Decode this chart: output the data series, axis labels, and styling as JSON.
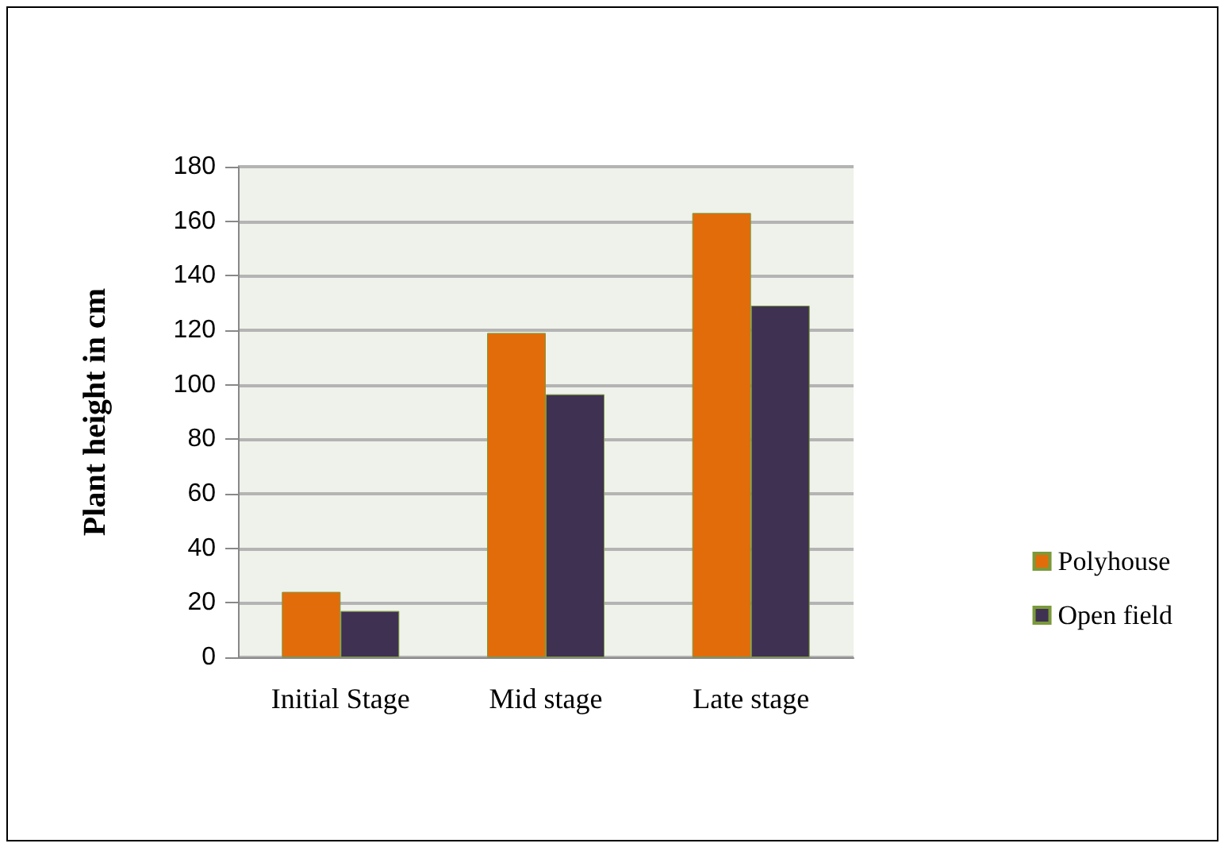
{
  "chart_data": {
    "type": "bar",
    "ylabel": "Plant height in cm",
    "categories": [
      "Initial Stage",
      "Mid stage",
      "Late stage"
    ],
    "series": [
      {
        "name": "Polyhouse",
        "color": "#e36c0a",
        "values": [
          24,
          119,
          163
        ]
      },
      {
        "name": "Open field",
        "color": "#3f3151",
        "values": [
          17,
          96.5,
          129
        ]
      }
    ],
    "ylim": [
      0,
      180
    ],
    "yticks": [
      0,
      20,
      40,
      60,
      80,
      100,
      120,
      140,
      160,
      180
    ],
    "grid": "y",
    "legend": "right"
  }
}
